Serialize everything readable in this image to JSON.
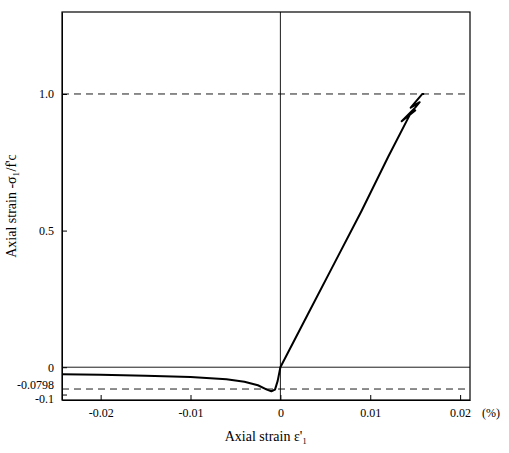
{
  "chart_data": {
    "type": "line",
    "xlabel": "Axial strain ε'₁",
    "ylabel": "Axial strain  -σ₁/f'c",
    "x_unit": "(%)",
    "xlim": [
      -0.0243,
      0.0211
    ],
    "ylim": [
      -0.12,
      1.3
    ],
    "xticks": [
      -0.02,
      -0.01,
      0,
      0.01,
      0.02
    ],
    "yticks": [
      -0.1,
      0,
      0.5,
      {
        "value": 1,
        "label": "1.0"
      }
    ],
    "hlines": [
      {
        "value": 1,
        "line_style": "dashed"
      },
      {
        "value": -0.0798,
        "label": "-0.0798",
        "line_style": "dashed"
      },
      {
        "value": 0,
        "line_style": "solid"
      }
    ],
    "vlines": [
      {
        "value": 0,
        "line_style": "solid"
      }
    ],
    "series": [
      {
        "color": "#000000",
        "line_style": "solid",
        "x": [
          -0.0243,
          -0.02,
          -0.015,
          -0.01,
          -0.006,
          -0.004,
          -0.0025,
          -0.0015,
          -0.001,
          -0.0006,
          -0.0003,
          0,
          0.003,
          0.006,
          0.009,
          0.012,
          0.0145,
          0.015,
          0.0135,
          0.015,
          0.0155,
          0.0145,
          0.0158,
          0.016
        ],
        "values": [
          -0.026,
          -0.028,
          -0.031,
          -0.036,
          -0.044,
          -0.053,
          -0.066,
          -0.082,
          -0.088,
          -0.082,
          -0.05,
          0,
          0.19,
          0.38,
          0.57,
          0.77,
          0.93,
          0.94,
          0.9,
          0.95,
          0.97,
          0.95,
          1.0,
          1.0
        ]
      }
    ]
  }
}
